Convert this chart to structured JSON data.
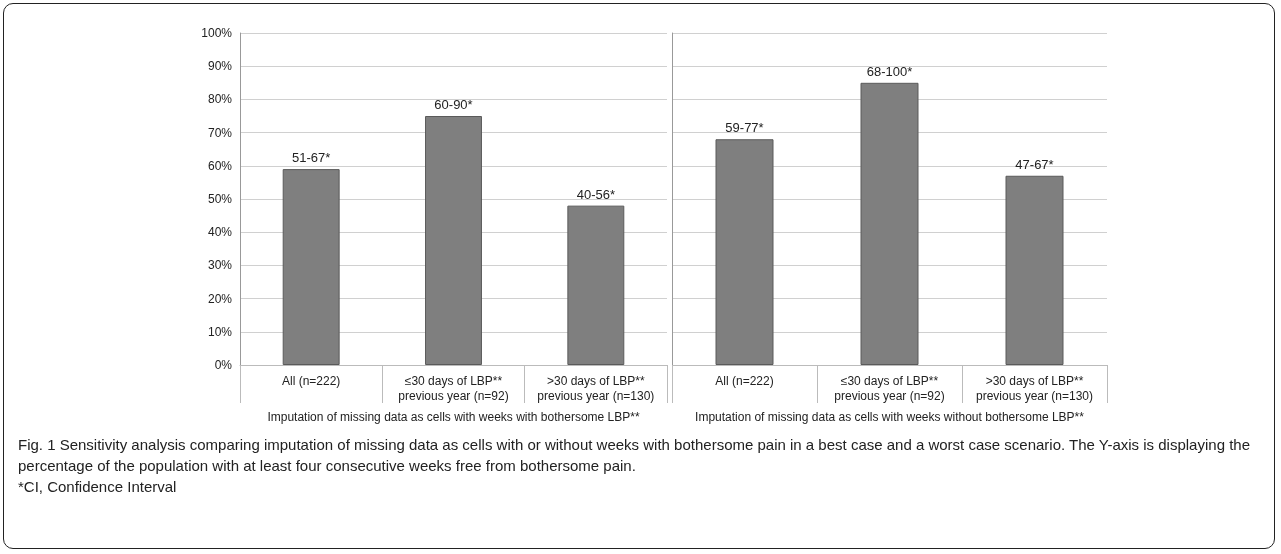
{
  "chart_data": [
    {
      "type": "bar",
      "xlabel": "Imputation of missing data as cells with weeks with bothersome LBP**",
      "categories": [
        "All (n=222)",
        "≤30 days of LBP**\nprevious year (n=92)",
        ">30 days of LBP**\nprevious year (n=130)"
      ],
      "values": [
        59,
        75,
        48
      ],
      "value_labels": [
        "51-67*",
        "60-90*",
        "40-56*"
      ],
      "color": "#7f7f7f",
      "ylim": [
        0,
        100
      ],
      "yticks": [
        {
          "value": 0,
          "label": "0%"
        },
        {
          "value": 10,
          "label": "10%"
        },
        {
          "value": 20,
          "label": "20%"
        },
        {
          "value": 30,
          "label": "30%"
        },
        {
          "value": 40,
          "label": "40%"
        },
        {
          "value": 50,
          "label": "50%"
        },
        {
          "value": 60,
          "label": "60%"
        },
        {
          "value": 70,
          "label": "70%"
        },
        {
          "value": 80,
          "label": "80%"
        },
        {
          "value": 90,
          "label": "90%"
        },
        {
          "value": 100,
          "label": "100%"
        }
      ],
      "grid": "y",
      "annotations": [
        "Fig. 1 Sensitivity analysis comparing imputation of missing data as cells with or without weeks with bothersome pain in a best case and a worst case scenario. The Y-axis is displaying the percentage of the population with at least four consecutive weeks free from bothersome pain.",
        "*CI, Confidence Interval"
      ]
    },
    {
      "type": "bar",
      "xlabel": "Imputation of missing data as cells with weeks without bothersome LBP**",
      "categories": [
        "All (n=222)",
        "≤30 days of LBP**\nprevious year (n=92)",
        ">30 days of LBP**\nprevious year (n=130)"
      ],
      "values": [
        68,
        85,
        57
      ],
      "value_labels": [
        "59-77*",
        "68-100*",
        "47-67*"
      ],
      "color": "#7f7f7f",
      "ylim": [
        0,
        100
      ],
      "yticks": [
        {
          "value": 0,
          "label": null
        },
        {
          "value": 10,
          "label": null
        },
        {
          "value": 20,
          "label": null
        },
        {
          "value": 30,
          "label": null
        },
        {
          "value": 40,
          "label": null
        },
        {
          "value": 50,
          "label": null
        },
        {
          "value": 60,
          "label": null
        },
        {
          "value": 70,
          "label": null
        },
        {
          "value": 80,
          "label": null
        },
        {
          "value": 90,
          "label": null
        },
        {
          "value": 100,
          "label": null
        }
      ],
      "grid": "y",
      "tick_labels": "x"
    }
  ]
}
